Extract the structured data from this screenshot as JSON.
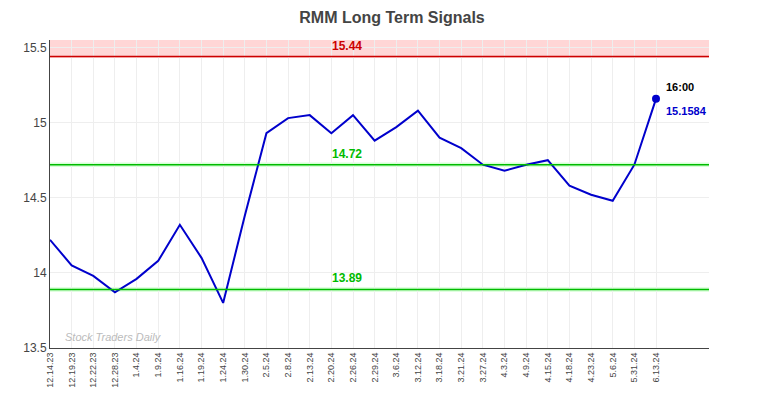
{
  "chart_data": {
    "type": "line",
    "title": "RMM Long Term Signals",
    "categories": [
      "12.14.23",
      "12.19.23",
      "12.22.23",
      "12.28.23",
      "1.4.24",
      "1.9.24",
      "1.16.24",
      "1.19.24",
      "1.24.24",
      "1.30.24",
      "2.5.24",
      "2.8.24",
      "2.13.24",
      "2.20.24",
      "2.26.24",
      "2.29.24",
      "3.6.24",
      "3.12.24",
      "3.18.24",
      "3.21.24",
      "3.27.24",
      "4.3.24",
      "4.9.24",
      "4.15.24",
      "4.18.24",
      "4.23.24",
      "5.6.24",
      "5.31.24",
      "6.13.24"
    ],
    "values": [
      14.22,
      14.05,
      13.98,
      13.87,
      13.96,
      14.08,
      14.32,
      14.1,
      13.8,
      14.38,
      14.93,
      15.03,
      15.05,
      14.93,
      15.05,
      14.88,
      14.97,
      15.08,
      14.9,
      14.83,
      14.72,
      14.68,
      14.72,
      14.75,
      14.58,
      14.52,
      14.48,
      14.72,
      15.1584
    ],
    "color": "#0000cc",
    "ylim": [
      13.5,
      15.55
    ],
    "yticks": [
      13.5,
      14,
      14.5,
      15,
      15.5
    ],
    "grid": true,
    "bands": [
      {
        "from": 15.43,
        "to": 15.55,
        "color": "#ffcccc"
      },
      {
        "from": 14.705,
        "to": 14.735,
        "color": "#ccffcc"
      },
      {
        "from": 13.875,
        "to": 13.905,
        "color": "#ccffcc"
      }
    ],
    "lines": [
      {
        "value": 15.44,
        "label": "15.44",
        "color": "#cc0000"
      },
      {
        "value": 14.72,
        "label": "14.72",
        "color": "#00bb00"
      },
      {
        "value": 13.89,
        "label": "13.89",
        "color": "#00bb00"
      }
    ],
    "annotations": [
      {
        "text": "16:00",
        "color": "#000000"
      },
      {
        "text": "15.1584",
        "color": "#0000cc"
      },
      {
        "text": "Stock Traders Daily",
        "color": "#bbbbbb"
      }
    ]
  }
}
